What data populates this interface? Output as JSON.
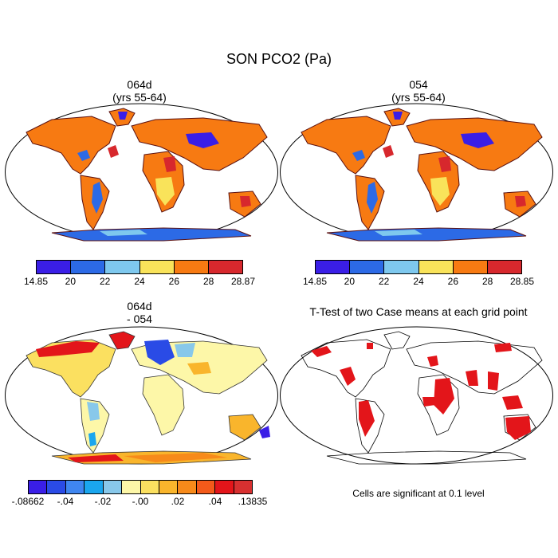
{
  "title": "SON PCO2 (Pa)",
  "panels": [
    {
      "id": "case1",
      "title_line1": "064d",
      "title_line2": "(yrs 55-64)",
      "colorbar": {
        "colors": [
          "#3a1ee6",
          "#2c6ae6",
          "#7ec8ee",
          "#f9e35a",
          "#f77a12",
          "#d7282d"
        ],
        "labels": [
          "14.85",
          "20",
          "22",
          "24",
          "26",
          "28",
          "28.87"
        ]
      }
    },
    {
      "id": "case2",
      "title_line1": "054",
      "title_line2": "(yrs 55-64)",
      "colorbar": {
        "colors": [
          "#3a1ee6",
          "#2c6ae6",
          "#7ec8ee",
          "#f9e35a",
          "#f77a12",
          "#d7282d"
        ],
        "labels": [
          "14.85",
          "20",
          "22",
          "24",
          "26",
          "28",
          "28.85"
        ]
      }
    },
    {
      "id": "diff",
      "title_line1": "064d",
      "title_line2": "- 054",
      "colorbar": {
        "colors": [
          "#3a1ee6",
          "#2a4be6",
          "#3f86f0",
          "#1aa6ee",
          "#88c8ea",
          "#fdf7a8",
          "#fbe060",
          "#f9b52c",
          "#f78a1a",
          "#f35a1a",
          "#e3151a",
          "#d73030"
        ],
        "labels": [
          "-.08662",
          "-.04",
          "-.02",
          "-.00",
          ".02",
          ".04",
          ".13835"
        ]
      }
    },
    {
      "id": "ttest",
      "title_line1": "T-Test of two Case means at each grid point",
      "note": "Cells are significant at 0.1 level"
    }
  ]
}
